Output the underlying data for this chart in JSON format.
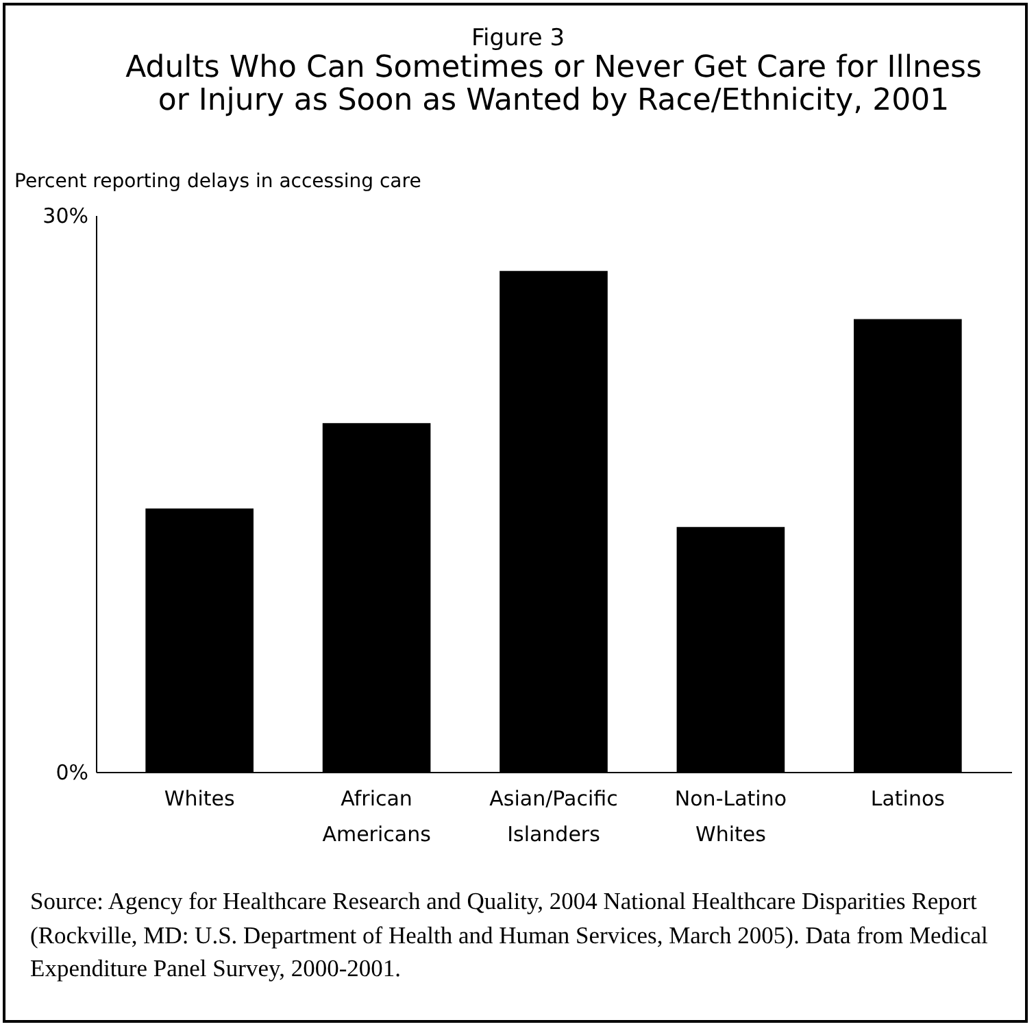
{
  "chart_data": {
    "type": "bar",
    "title": "Adults Who Can Sometimes or Never Get Care for Illness\nor Injury as Soon as Wanted by Race/Ethnicity, 2001",
    "ylabel": "Percent reporting delays in accessing care",
    "categories": [
      "Whites",
      "African Americans",
      "Asian/Pacific Islanders",
      "Non-Latino Whites",
      "Latinos"
    ],
    "values": [
      14.2,
      18.8,
      27.0,
      13.2,
      24.4
    ],
    "color": "#000000",
    "ylim": [
      0,
      30
    ],
    "yticks": [
      {
        "value": 0,
        "label": "0%"
      },
      {
        "value": 30,
        "label": "30%"
      }
    ],
    "grid": false,
    "annotations": [
      "Figure 3",
      "Source: Agency for Healthcare Research and Quality, 2004 National Healthcare Disparities Report (Rockville, MD: U.S. Department of Health and Human Services, March 2005). Data from Medical Expenditure Panel Survey, 2000-2001."
    ]
  }
}
